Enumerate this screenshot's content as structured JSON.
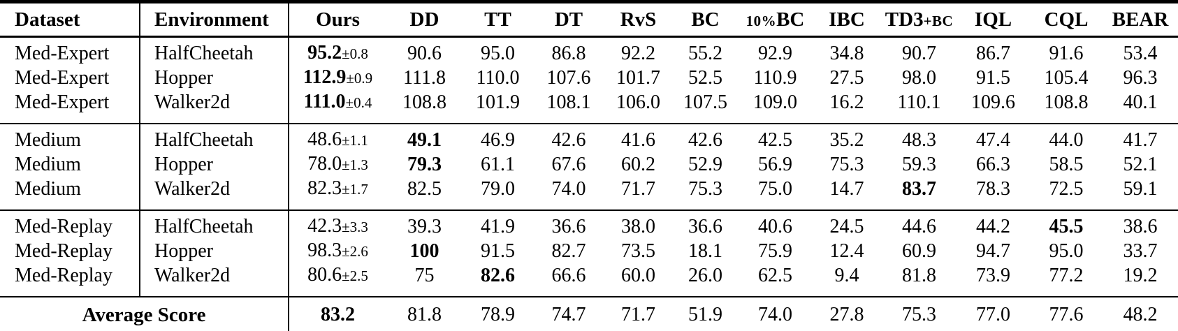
{
  "table": {
    "headers": {
      "dataset": "Dataset",
      "environment": "Environment",
      "methods": [
        {
          "id": "ours",
          "parts": [
            {
              "t": "Ours"
            }
          ]
        },
        {
          "id": "dd",
          "parts": [
            {
              "t": "DD"
            }
          ]
        },
        {
          "id": "tt",
          "parts": [
            {
              "t": "TT"
            }
          ]
        },
        {
          "id": "dt",
          "parts": [
            {
              "t": "DT"
            }
          ]
        },
        {
          "id": "rvs",
          "parts": [
            {
              "t": "RvS"
            }
          ]
        },
        {
          "id": "bc",
          "parts": [
            {
              "t": "BC"
            }
          ]
        },
        {
          "id": "10pct-bc",
          "parts": [
            {
              "t": "10%",
              "small": true
            },
            {
              "t": "BC"
            }
          ]
        },
        {
          "id": "ibc",
          "parts": [
            {
              "t": "IBC"
            }
          ]
        },
        {
          "id": "td3-bc",
          "parts": [
            {
              "t": "TD3"
            },
            {
              "t": "+BC",
              "small": true
            }
          ]
        },
        {
          "id": "iql",
          "parts": [
            {
              "t": "IQL"
            }
          ]
        },
        {
          "id": "cql",
          "parts": [
            {
              "t": "CQL"
            }
          ]
        },
        {
          "id": "bear",
          "parts": [
            {
              "t": "BEAR"
            }
          ]
        }
      ]
    },
    "groups": [
      {
        "name": "Med-Expert",
        "rows": [
          {
            "dataset": "Med-Expert",
            "environment": "HalfCheetah",
            "ours": {
              "score": "95.2",
              "std": "0.8",
              "bold": true
            },
            "values": [
              {
                "v": "90.6"
              },
              {
                "v": "95.0"
              },
              {
                "v": "86.8"
              },
              {
                "v": "92.2"
              },
              {
                "v": "55.2"
              },
              {
                "v": "92.9"
              },
              {
                "v": "34.8"
              },
              {
                "v": "90.7"
              },
              {
                "v": "86.7"
              },
              {
                "v": "91.6"
              },
              {
                "v": "53.4"
              }
            ]
          },
          {
            "dataset": "Med-Expert",
            "environment": "Hopper",
            "ours": {
              "score": "112.9",
              "std": "0.9",
              "bold": true
            },
            "values": [
              {
                "v": "111.8"
              },
              {
                "v": "110.0"
              },
              {
                "v": "107.6"
              },
              {
                "v": "101.7"
              },
              {
                "v": "52.5"
              },
              {
                "v": "110.9"
              },
              {
                "v": "27.5"
              },
              {
                "v": "98.0"
              },
              {
                "v": "91.5"
              },
              {
                "v": "105.4"
              },
              {
                "v": "96.3"
              }
            ]
          },
          {
            "dataset": "Med-Expert",
            "environment": "Walker2d",
            "ours": {
              "score": "111.0",
              "std": "0.4",
              "bold": true
            },
            "values": [
              {
                "v": "108.8"
              },
              {
                "v": "101.9"
              },
              {
                "v": "108.1"
              },
              {
                "v": "106.0"
              },
              {
                "v": "107.5"
              },
              {
                "v": "109.0"
              },
              {
                "v": "16.2"
              },
              {
                "v": "110.1"
              },
              {
                "v": "109.6"
              },
              {
                "v": "108.8"
              },
              {
                "v": "40.1"
              }
            ]
          }
        ]
      },
      {
        "name": "Medium",
        "rows": [
          {
            "dataset": "Medium",
            "environment": "HalfCheetah",
            "ours": {
              "score": "48.6",
              "std": "1.1",
              "bold": false
            },
            "values": [
              {
                "v": "49.1",
                "bold": true
              },
              {
                "v": "46.9"
              },
              {
                "v": "42.6"
              },
              {
                "v": "41.6"
              },
              {
                "v": "42.6"
              },
              {
                "v": "42.5"
              },
              {
                "v": "35.2"
              },
              {
                "v": "48.3"
              },
              {
                "v": "47.4"
              },
              {
                "v": "44.0"
              },
              {
                "v": "41.7"
              }
            ]
          },
          {
            "dataset": "Medium",
            "environment": "Hopper",
            "ours": {
              "score": "78.0",
              "std": "1.3",
              "bold": false
            },
            "values": [
              {
                "v": "79.3",
                "bold": true
              },
              {
                "v": "61.1"
              },
              {
                "v": "67.6"
              },
              {
                "v": "60.2"
              },
              {
                "v": "52.9"
              },
              {
                "v": "56.9"
              },
              {
                "v": "75.3"
              },
              {
                "v": "59.3"
              },
              {
                "v": "66.3"
              },
              {
                "v": "58.5"
              },
              {
                "v": "52.1"
              }
            ]
          },
          {
            "dataset": "Medium",
            "environment": "Walker2d",
            "ours": {
              "score": "82.3",
              "std": "1.7",
              "bold": false
            },
            "values": [
              {
                "v": "82.5"
              },
              {
                "v": "79.0"
              },
              {
                "v": "74.0"
              },
              {
                "v": "71.7"
              },
              {
                "v": "75.3"
              },
              {
                "v": "75.0"
              },
              {
                "v": "14.7"
              },
              {
                "v": "83.7",
                "bold": true
              },
              {
                "v": "78.3"
              },
              {
                "v": "72.5"
              },
              {
                "v": "59.1"
              }
            ]
          }
        ]
      },
      {
        "name": "Med-Replay",
        "rows": [
          {
            "dataset": "Med-Replay",
            "environment": "HalfCheetah",
            "ours": {
              "score": "42.3",
              "std": "3.3",
              "bold": false
            },
            "values": [
              {
                "v": "39.3"
              },
              {
                "v": "41.9"
              },
              {
                "v": "36.6"
              },
              {
                "v": "38.0"
              },
              {
                "v": "36.6"
              },
              {
                "v": "40.6"
              },
              {
                "v": "24.5"
              },
              {
                "v": "44.6"
              },
              {
                "v": "44.2"
              },
              {
                "v": "45.5",
                "bold": true
              },
              {
                "v": "38.6"
              }
            ]
          },
          {
            "dataset": "Med-Replay",
            "environment": "Hopper",
            "ours": {
              "score": "98.3",
              "std": "2.6",
              "bold": false
            },
            "values": [
              {
                "v": "100",
                "bold": true
              },
              {
                "v": "91.5"
              },
              {
                "v": "82.7"
              },
              {
                "v": "73.5"
              },
              {
                "v": "18.1"
              },
              {
                "v": "75.9"
              },
              {
                "v": "12.4"
              },
              {
                "v": "60.9"
              },
              {
                "v": "94.7"
              },
              {
                "v": "95.0"
              },
              {
                "v": "33.7"
              }
            ]
          },
          {
            "dataset": "Med-Replay",
            "environment": "Walker2d",
            "ours": {
              "score": "80.6",
              "std": "2.5",
              "bold": false
            },
            "values": [
              {
                "v": "75"
              },
              {
                "v": "82.6",
                "bold": true
              },
              {
                "v": "66.6"
              },
              {
                "v": "60.0"
              },
              {
                "v": "26.0"
              },
              {
                "v": "62.5"
              },
              {
                "v": "9.4"
              },
              {
                "v": "81.8"
              },
              {
                "v": "73.9"
              },
              {
                "v": "77.2"
              },
              {
                "v": "19.2"
              }
            ]
          }
        ]
      }
    ],
    "footer": {
      "label": "Average Score",
      "ours": {
        "score": "83.2",
        "bold": true
      },
      "values": [
        {
          "v": "81.8"
        },
        {
          "v": "78.9"
        },
        {
          "v": "74.7"
        },
        {
          "v": "71.7"
        },
        {
          "v": "51.9"
        },
        {
          "v": "74.0"
        },
        {
          "v": "27.8"
        },
        {
          "v": "75.3"
        },
        {
          "v": "77.0"
        },
        {
          "v": "77.6"
        },
        {
          "v": "48.2"
        }
      ]
    }
  },
  "pm_symbol": "±"
}
